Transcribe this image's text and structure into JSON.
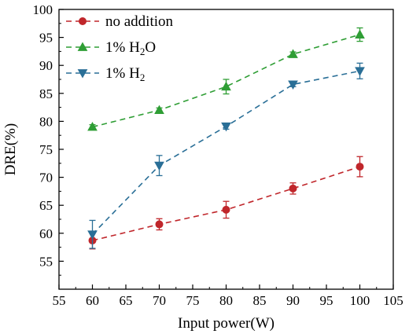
{
  "chart_data": {
    "type": "line",
    "title": "",
    "xlabel": "Input power(W)",
    "ylabel": "DRE(%)",
    "xlim": [
      55,
      105
    ],
    "ylim": [
      50,
      100
    ],
    "x_ticks": [
      55,
      60,
      65,
      70,
      75,
      80,
      85,
      90,
      95,
      100,
      105
    ],
    "y_ticks": [
      55,
      60,
      65,
      70,
      75,
      80,
      85,
      90,
      95,
      100
    ],
    "grid": false,
    "legend_position": "top-left",
    "x": [
      60,
      70,
      80,
      90,
      100
    ],
    "series": [
      {
        "name": "no addition",
        "name_parts": [
          "no addition"
        ],
        "color": "#c0262b",
        "marker": "circle",
        "line_style": "dashed",
        "values": [
          58.7,
          61.6,
          64.2,
          68.0,
          71.9
        ],
        "errors": [
          1.5,
          1.0,
          1.5,
          1.0,
          1.8
        ]
      },
      {
        "name": "1% H2O",
        "name_parts": [
          "1% H",
          "2",
          "O"
        ],
        "color": "#2f9e35",
        "marker": "triangle-up",
        "line_style": "dashed",
        "values": [
          79.0,
          82.0,
          86.2,
          92.0,
          95.5
        ],
        "errors": [
          0.4,
          0.4,
          1.3,
          0.4,
          1.2
        ]
      },
      {
        "name": "1% H2",
        "name_parts": [
          "1% H",
          "2",
          ""
        ],
        "color": "#2a6f97",
        "marker": "triangle-down",
        "line_style": "dashed",
        "values": [
          59.8,
          72.1,
          79.1,
          86.6,
          89.0
        ],
        "errors": [
          2.5,
          1.8,
          0.5,
          0.4,
          1.4
        ]
      }
    ]
  }
}
